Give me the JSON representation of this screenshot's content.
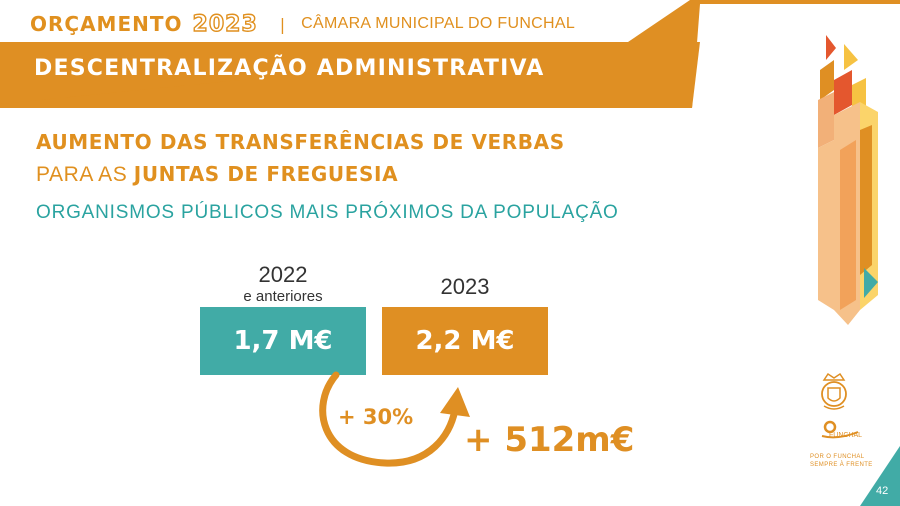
{
  "header": {
    "brand": "ORÇAMENTO",
    "year": "2023",
    "separator": "|",
    "organization": "CÂMARA MUNICIPAL DO FUNCHAL"
  },
  "banner": {
    "title": "DESCENTRALIZAÇÃO ADMINISTRATIVA"
  },
  "headline": {
    "line1": "AUMENTO DAS  TRANSFERÊNCIAS DE VERBAS",
    "line2_light": "PARA AS ",
    "line2_bold": "JUNTAS DE FREGUESIA",
    "line3": "ORGANISMOS PÚBLICOS MAIS PRÓXIMOS DA POPULAÇÃO"
  },
  "comparison": {
    "before": {
      "year": "2022",
      "sub": "e anteriores",
      "value": "1,7 M€"
    },
    "after": {
      "year": "2023",
      "value": "2,2 M€"
    },
    "increase_pct": "+ 30%",
    "increase_abs": "+ 512m€"
  },
  "logos": {
    "funchal": "FUNCHAL",
    "tagline1": "POR O FUNCHAL",
    "tagline2": "SEMPRE À FRENTE"
  },
  "page_number": "42",
  "colors": {
    "orange": "#df8f23",
    "teal": "#41aba6",
    "yellow": "#f6c242",
    "red": "#e4572e"
  }
}
